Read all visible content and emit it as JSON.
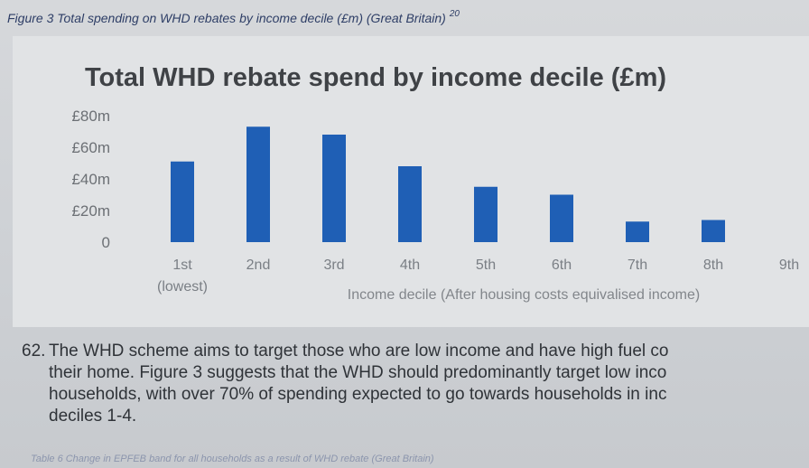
{
  "caption": {
    "text": "Figure 3 Total spending on WHD rebates by income decile (£m) (Great Britain)",
    "footnote": "20"
  },
  "chart_data": {
    "type": "bar",
    "title": "Total WHD rebate spend by income decile (£m)",
    "xlabel": "Income decile (After housing costs equivalised income)",
    "ylabel": "",
    "categories": [
      "1st (lowest)",
      "2nd",
      "3rd",
      "4th",
      "5th",
      "6th",
      "7th",
      "8th",
      "9th"
    ],
    "category_lines": [
      [
        "1st",
        "(lowest)"
      ],
      [
        "2nd"
      ],
      [
        "3rd"
      ],
      [
        "4th"
      ],
      [
        "5th"
      ],
      [
        "6th"
      ],
      [
        "7th"
      ],
      [
        "8th"
      ],
      [
        "9th"
      ]
    ],
    "values": [
      51,
      73,
      68,
      48,
      35,
      30,
      13,
      14,
      0
    ],
    "ylim": [
      0,
      80
    ],
    "yticks": [
      0,
      20,
      40,
      60,
      80
    ],
    "ytick_labels": [
      "0",
      "£20m",
      "£40m",
      "£60m",
      "£80m"
    ],
    "bar_color": "#1f5fb5",
    "grid": false,
    "legend": "none"
  },
  "paragraph": {
    "number": "62.",
    "lines": [
      "The WHD scheme aims to target those who are low income and have high fuel co",
      "their home. Figure 3 suggests that the WHD should predominantly target low inco",
      "households, with over 70% of spending expected to go towards households in inc",
      "deciles 1-4."
    ]
  },
  "footer": {
    "text": "Table 6 Change in EPFEB band for all households as a result of WHD rebate (Great Britain)"
  }
}
